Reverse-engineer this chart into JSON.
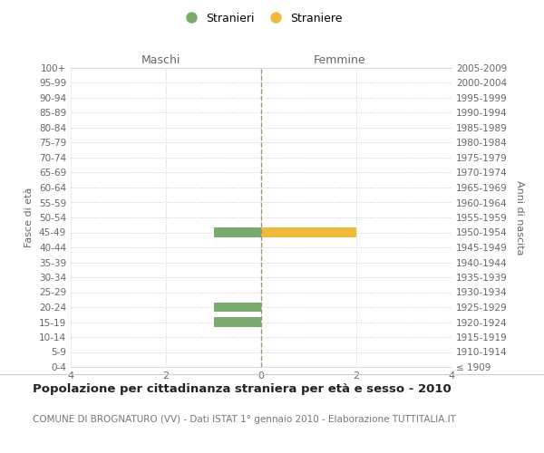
{
  "age_groups": [
    "100+",
    "95-99",
    "90-94",
    "85-89",
    "80-84",
    "75-79",
    "70-74",
    "65-69",
    "60-64",
    "55-59",
    "50-54",
    "45-49",
    "40-44",
    "35-39",
    "30-34",
    "25-29",
    "20-24",
    "15-19",
    "10-14",
    "5-9",
    "0-4"
  ],
  "birth_years": [
    "≤ 1909",
    "1910-1914",
    "1915-1919",
    "1920-1924",
    "1925-1929",
    "1930-1934",
    "1935-1939",
    "1940-1944",
    "1945-1949",
    "1950-1954",
    "1955-1959",
    "1960-1964",
    "1965-1969",
    "1970-1974",
    "1975-1979",
    "1980-1984",
    "1985-1989",
    "1990-1994",
    "1995-1999",
    "2000-2004",
    "2005-2009"
  ],
  "males": [
    0,
    0,
    0,
    0,
    0,
    0,
    0,
    0,
    0,
    0,
    0,
    1,
    0,
    0,
    0,
    0,
    1,
    1,
    0,
    0,
    0
  ],
  "females": [
    0,
    0,
    0,
    0,
    0,
    0,
    0,
    0,
    0,
    0,
    0,
    2,
    0,
    0,
    0,
    0,
    0,
    0,
    0,
    0,
    0
  ],
  "male_color": "#7aaa6e",
  "female_color": "#f0ba3c",
  "title": "Popolazione per cittadinanza straniera per età e sesso - 2010",
  "subtitle": "COMUNE DI BROGNATURO (VV) - Dati ISTAT 1° gennaio 2010 - Elaborazione TUTTITALIA.IT",
  "left_header": "Maschi",
  "right_header": "Femmine",
  "ylabel_left": "Fasce di età",
  "ylabel_right": "Anni di nascita",
  "legend_stranieri": "Stranieri",
  "legend_straniere": "Straniere",
  "background_color": "#ffffff",
  "grid_color": "#cccccc"
}
